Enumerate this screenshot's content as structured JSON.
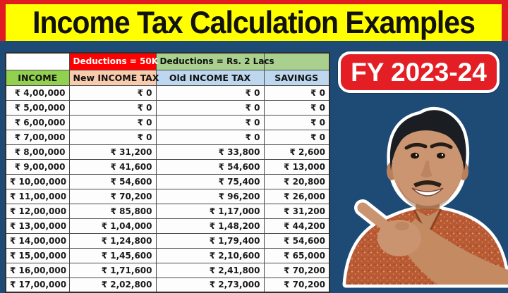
{
  "title": "Income Tax Calculation Examples",
  "badge": {
    "label": "FY 2023-24"
  },
  "chart_data": {
    "type": "table",
    "title": "Income Tax Calculation Examples",
    "subtitle": "FY 2023-24",
    "group_headers": [
      "",
      "Deductions = 50K",
      "Deductions = Rs. 2 Lacs",
      ""
    ],
    "columns": [
      "INCOME",
      "New INCOME TAX",
      "Old INCOME TAX",
      "SAVINGS"
    ],
    "rows": [
      [
        "₹ 4,00,000",
        "₹ 0",
        "₹ 0",
        "₹ 0"
      ],
      [
        "₹ 5,00,000",
        "₹ 0",
        "₹ 0",
        "₹ 0"
      ],
      [
        "₹ 6,00,000",
        "₹ 0",
        "₹ 0",
        "₹ 0"
      ],
      [
        "₹ 7,00,000",
        "₹ 0",
        "₹ 0",
        "₹ 0"
      ],
      [
        "₹ 8,00,000",
        "₹ 31,200",
        "₹ 33,800",
        "₹ 2,600"
      ],
      [
        "₹ 9,00,000",
        "₹ 41,600",
        "₹ 54,600",
        "₹ 13,000"
      ],
      [
        "₹ 10,00,000",
        "₹ 54,600",
        "₹ 75,400",
        "₹ 20,800"
      ],
      [
        "₹ 11,00,000",
        "₹ 70,200",
        "₹ 96,200",
        "₹ 26,000"
      ],
      [
        "₹ 12,00,000",
        "₹ 85,800",
        "₹ 1,17,000",
        "₹ 31,200"
      ],
      [
        "₹ 13,00,000",
        "₹ 1,04,000",
        "₹ 1,48,200",
        "₹ 44,200"
      ],
      [
        "₹ 14,00,000",
        "₹ 1,24,800",
        "₹ 1,79,400",
        "₹ 54,600"
      ],
      [
        "₹ 15,00,000",
        "₹ 1,45,600",
        "₹ 2,10,600",
        "₹ 65,000"
      ],
      [
        "₹ 16,00,000",
        "₹ 1,71,600",
        "₹ 2,41,800",
        "₹ 70,200"
      ],
      [
        "₹ 17,00,000",
        "₹ 2,02,800",
        "₹ 2,73,000",
        "₹ 70,200"
      ]
    ],
    "layout": {
      "grid": true,
      "last_row_clipped": true
    }
  },
  "colors": {
    "frame_red": "#e11b22",
    "title_bg": "#ffff00",
    "title_text": "#111111",
    "background_blue": "#1d4b75",
    "badge_bg": "#e31e25",
    "badge_text": "#ffffff",
    "deductions_new_bg": "#ff0000",
    "deductions_old_bg": "#a9d08e",
    "income_header_bg": "#92d050",
    "new_tax_header_bg": "#f8cbad",
    "old_tax_header_bg": "#bdd7ee",
    "savings_header_bg": "#bdd7ee"
  }
}
